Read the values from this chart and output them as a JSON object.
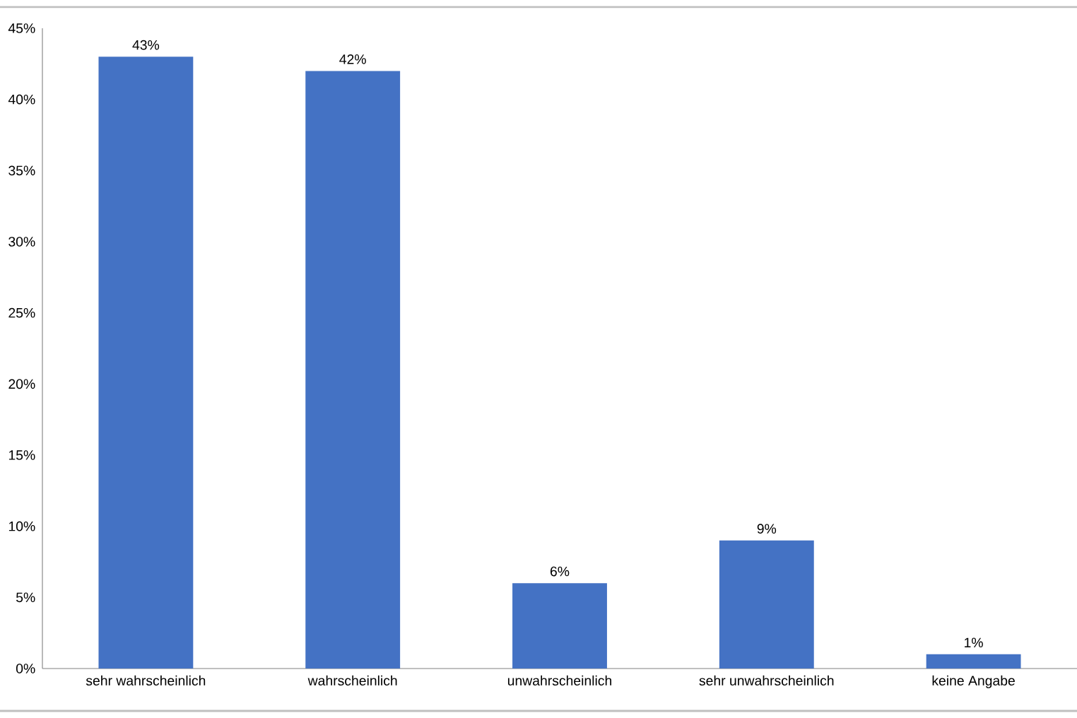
{
  "chart_data": {
    "type": "bar",
    "categories": [
      "sehr wahrscheinlich",
      "wahrscheinlich",
      "unwahrscheinlich",
      "sehr unwahrscheinlich",
      "keine Angabe"
    ],
    "values": [
      43,
      42,
      6,
      9,
      1
    ],
    "value_labels": [
      "43%",
      "42%",
      "6%",
      "9%",
      "1%"
    ],
    "color": "#4472c4",
    "ylim": [
      0,
      45
    ],
    "yticks": [
      {
        "value": 0,
        "label": "0%"
      },
      {
        "value": 5,
        "label": "5%"
      },
      {
        "value": 10,
        "label": "10%"
      },
      {
        "value": 15,
        "label": "15%"
      },
      {
        "value": 20,
        "label": "20%"
      },
      {
        "value": 25,
        "label": "25%"
      },
      {
        "value": 30,
        "label": "30%"
      },
      {
        "value": 35,
        "label": "35%"
      },
      {
        "value": 40,
        "label": "40%"
      },
      {
        "value": 45,
        "label": "45%"
      }
    ],
    "grid": false
  }
}
